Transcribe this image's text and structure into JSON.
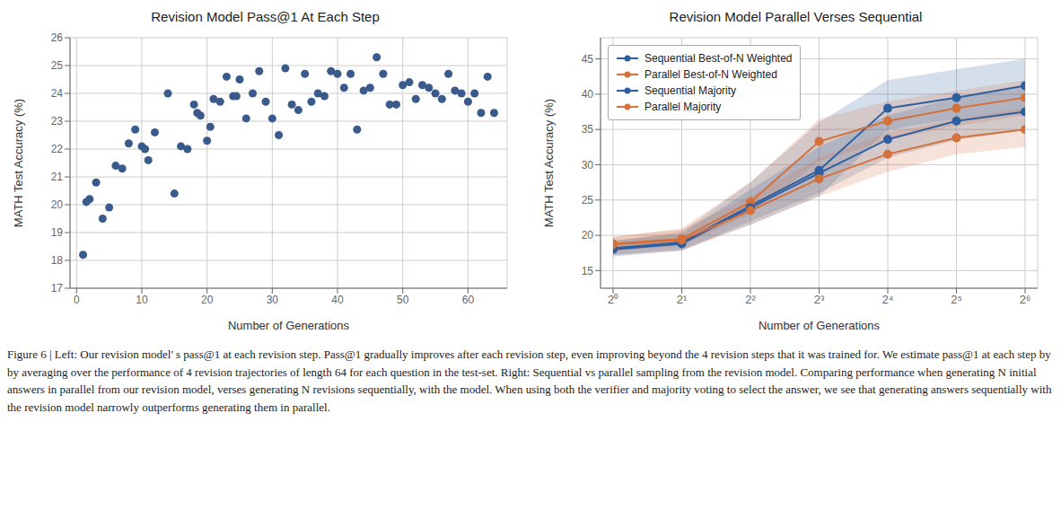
{
  "chart_data": [
    {
      "type": "scatter",
      "title": "Revision Model Pass@1 At Each Step",
      "xlabel": "Number of Generations",
      "ylabel": "MATH Test Accuracy (%)",
      "x": [
        1,
        1.5,
        2,
        3,
        4,
        5,
        6,
        7,
        8,
        9,
        10,
        10.5,
        11,
        12,
        14,
        15,
        16,
        17,
        18,
        18.5,
        19,
        20,
        20.5,
        21,
        22,
        23,
        24,
        24.5,
        25,
        26,
        27,
        28,
        29,
        30,
        31,
        32,
        33,
        34,
        35,
        36,
        37,
        38,
        39,
        40,
        41,
        42,
        43,
        44,
        45,
        46,
        47,
        48,
        49,
        50,
        51,
        52,
        53,
        54,
        55,
        56,
        57,
        58,
        59,
        60,
        61,
        62,
        63,
        64
      ],
      "values": [
        18.2,
        20.1,
        20.2,
        20.8,
        19.5,
        19.9,
        21.4,
        21.3,
        22.2,
        22.7,
        22.1,
        22.0,
        21.6,
        22.6,
        24.0,
        20.4,
        22.1,
        22.0,
        23.6,
        23.3,
        23.2,
        22.3,
        22.8,
        23.8,
        23.7,
        24.6,
        23.9,
        23.9,
        24.5,
        23.1,
        24.0,
        24.8,
        23.7,
        23.1,
        22.5,
        24.9,
        23.6,
        23.4,
        24.7,
        23.7,
        24.0,
        23.9,
        24.8,
        24.7,
        24.2,
        24.7,
        22.7,
        24.1,
        24.2,
        25.3,
        24.7,
        23.6,
        23.6,
        24.3,
        24.4,
        23.8,
        24.3,
        24.2,
        24.0,
        23.8,
        24.7,
        24.1,
        24.0,
        23.7,
        24.0,
        23.3,
        24.6,
        23.3
      ],
      "color": "#3a5a8c",
      "xlim": [
        -1,
        66
      ],
      "ylim": [
        17,
        26
      ],
      "xticks": [
        0,
        10,
        20,
        30,
        40,
        50,
        60
      ],
      "yticks": [
        17,
        18,
        19,
        20,
        21,
        22,
        23,
        24,
        25,
        26
      ],
      "grid": true
    },
    {
      "type": "line",
      "title": "Revision Model Parallel Verses Sequential",
      "xlabel": "Number of Generations",
      "ylabel": "MATH Test Accuracy (%)",
      "x": [
        0,
        1,
        2,
        3,
        4,
        5,
        6
      ],
      "xlim": [
        0,
        6
      ],
      "xticks": [
        {
          "value": 0,
          "label": "2⁰"
        },
        {
          "value": 1,
          "label": "2¹"
        },
        {
          "value": 2,
          "label": "2²"
        },
        {
          "value": 3,
          "label": "2³"
        },
        {
          "value": 4,
          "label": "2⁴"
        },
        {
          "value": 5,
          "label": "2⁵"
        },
        {
          "value": 6,
          "label": "2⁶"
        }
      ],
      "ylim": [
        12.5,
        48
      ],
      "yticks": [
        15,
        20,
        25,
        30,
        35,
        40,
        45
      ],
      "grid": true,
      "legend": "upper left",
      "marker": "circle",
      "series": [
        {
          "name": "Sequential Best-of-N Weighted",
          "color": "#2d5fa0",
          "values": [
            18.2,
            19.0,
            24.2,
            29.2,
            38.0,
            39.5,
            41.2
          ],
          "lower": [
            17.2,
            18.0,
            21.5,
            25.5,
            35.0,
            36.5,
            37.5
          ],
          "upper": [
            19.2,
            20.5,
            27.5,
            36.0,
            42.0,
            43.5,
            45.0
          ]
        },
        {
          "name": "Parallel Best-of-N Weighted",
          "color": "#d4703a",
          "values": [
            18.8,
            19.5,
            24.7,
            33.3,
            36.2,
            38.0,
            39.5
          ],
          "lower": [
            17.8,
            18.5,
            23.0,
            30.5,
            33.5,
            35.5,
            37.0
          ],
          "upper": [
            19.8,
            21.0,
            27.5,
            36.5,
            39.0,
            40.5,
            42.0
          ]
        },
        {
          "name": "Sequential Majority",
          "color": "#2d5fa0",
          "values": [
            18.0,
            18.8,
            23.9,
            28.8,
            33.6,
            36.2,
            37.5
          ],
          "lower": [
            17.0,
            17.8,
            22.0,
            26.0,
            31.0,
            33.5,
            35.0
          ],
          "upper": [
            19.2,
            20.2,
            26.5,
            32.5,
            37.0,
            39.5,
            41.0
          ]
        },
        {
          "name": "Parallel Majority",
          "color": "#d4703a",
          "values": [
            18.7,
            19.3,
            23.5,
            28.0,
            31.5,
            33.8,
            35.0
          ],
          "lower": [
            17.2,
            17.8,
            21.5,
            25.5,
            29.0,
            31.5,
            32.5
          ],
          "upper": [
            19.8,
            20.8,
            25.5,
            31.0,
            34.5,
            36.5,
            38.0
          ]
        }
      ]
    }
  ],
  "caption": "Figure 6 | Left: Our revision model' s pass@1 at each revision step. Pass@1 gradually improves after each revision step, even improving beyond the 4 revision steps that it was trained for. We estimate pass@1 at each step by by averaging over the performance of 4 revision trajectories of length 64 for each question in the test-set. Right: Sequential vs parallel sampling from the revision model. Comparing performance when generating N initial answers in parallel from our revision model, verses generating N revisions sequentially, with the model. When using both the verifier and majority voting to select the answer, we see that generating answers sequentially with the revision model narrowly outperforms generating them in parallel."
}
